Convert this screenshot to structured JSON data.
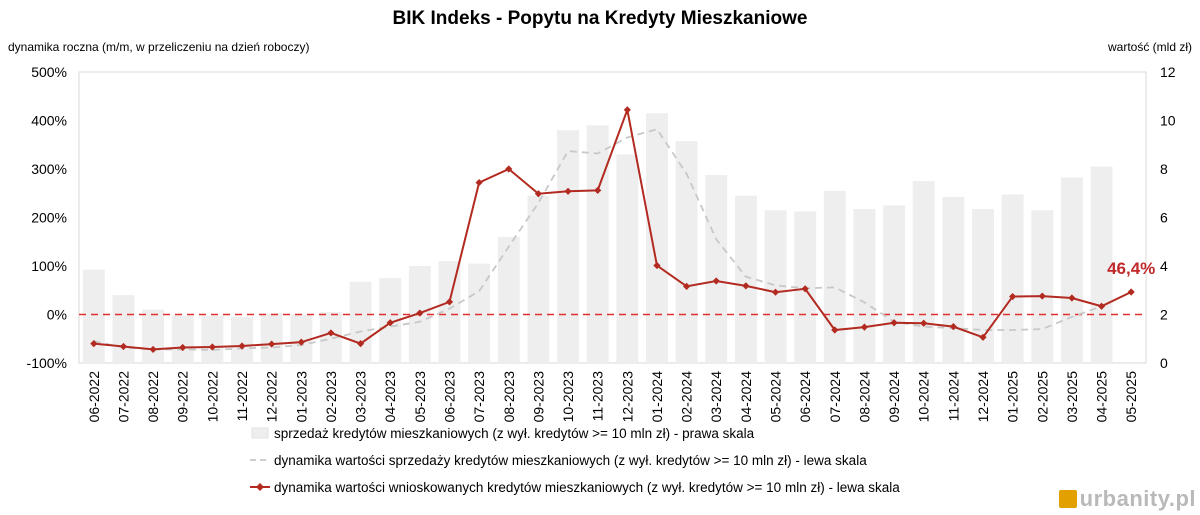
{
  "chart_data": {
    "type": "bar+line",
    "title": "BIK Indeks - Popytu na Kredyty Mieszkaniowe",
    "ylabel_left": "dynamika roczna (m/m, w przeliczeniu na dzień roboczy)",
    "ylabel_right": "wartość (mld zł)",
    "categories": [
      "06-2022",
      "07-2022",
      "08-2022",
      "09-2022",
      "10-2022",
      "11-2022",
      "12-2022",
      "01-2023",
      "02-2023",
      "03-2023",
      "04-2023",
      "05-2023",
      "06-2023",
      "07-2023",
      "08-2023",
      "09-2023",
      "10-2023",
      "11-2023",
      "12-2023",
      "01-2024",
      "02-2024",
      "03-2024",
      "04-2024",
      "05-2024",
      "06-2024",
      "07-2024",
      "08-2024",
      "09-2024",
      "10-2024",
      "11-2024",
      "12-2024",
      "01-2025",
      "02-2025",
      "03-2025",
      "04-2025",
      "05-2025"
    ],
    "left_axis": {
      "min": -100,
      "max": 500,
      "step": 100,
      "ticks": [
        "-100%",
        "0%",
        "100%",
        "200%",
        "300%",
        "400%",
        "500%"
      ]
    },
    "right_axis": {
      "min": 0,
      "max": 12,
      "step": 2,
      "ticks": [
        "0",
        "2",
        "4",
        "6",
        "8",
        "10",
        "12"
      ]
    },
    "zero_line": {
      "value": 0,
      "color": "#e03030",
      "style": "dashed"
    },
    "series": [
      {
        "name": "sprzedaż kredytów mieszkaniowych (z wył. kredytów >= 10 mln zł) - prawa skala",
        "type": "bar",
        "axis": "right",
        "color": "#eeeeee",
        "values": [
          3.85,
          2.8,
          2.2,
          1.95,
          1.95,
          1.9,
          2.05,
          2.0,
          2.1,
          3.35,
          3.5,
          4.0,
          4.2,
          4.1,
          5.2,
          6.9,
          9.6,
          9.8,
          8.6,
          10.3,
          9.15,
          7.75,
          6.9,
          6.3,
          6.25,
          7.1,
          6.35,
          6.5,
          7.5,
          6.85,
          6.35,
          6.95,
          6.3,
          7.65,
          8.1,
          0
        ]
      },
      {
        "name": "dynamika wartości sprzedaży kredytów mieszkaniowych (z wył. kredytów >= 10 mln zł) - lewa skala",
        "type": "line",
        "axis": "left",
        "color": "#c8c8c8",
        "style": "dashed",
        "values": [
          -55,
          -68,
          -72,
          -72,
          -73,
          -70,
          -68,
          -63,
          -50,
          -35,
          -25,
          -15,
          12,
          48,
          140,
          230,
          337,
          332,
          365,
          382,
          290,
          155,
          78,
          60,
          54,
          56,
          25,
          -15,
          -25,
          -28,
          -32,
          -32,
          -30,
          -5,
          17,
          null
        ]
      },
      {
        "name": "dynamika wartości wnioskowanych kredytów mieszkaniowych (z wył. kredytów >= 10 mln zł) - lewa skala",
        "type": "line",
        "axis": "left",
        "color": "#b22a20",
        "marker": "diamond",
        "values": [
          -60,
          -66,
          -72,
          -68,
          -67,
          -65,
          -61,
          -57,
          -38,
          -60,
          -17,
          3,
          26,
          272,
          300,
          249,
          254,
          256,
          422,
          101,
          58,
          69,
          59,
          46,
          53,
          -32,
          -26,
          -17,
          -18,
          -25,
          -47,
          37,
          38,
          34,
          17,
          46.4
        ]
      }
    ],
    "annotation": {
      "text": "46,4%",
      "color": "#c0282a"
    },
    "legend_position": "bottom-center"
  },
  "watermark": {
    "text": "urbanity.pl"
  }
}
